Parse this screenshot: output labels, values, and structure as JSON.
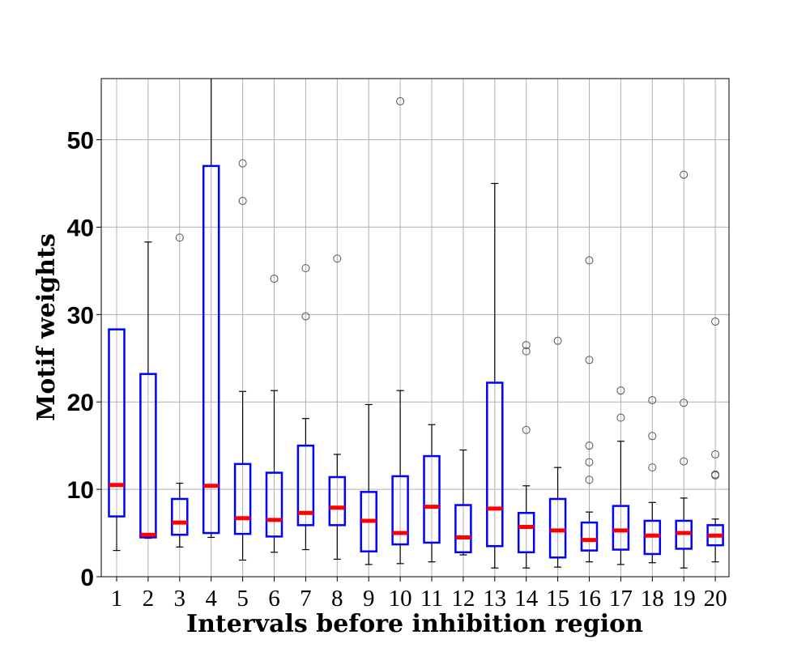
{
  "chart_data": {
    "type": "box",
    "title": "",
    "xlabel": "Intervals before inhibition region",
    "ylabel": "Motif weights",
    "ylim": [
      0,
      57
    ],
    "yticks": [
      0,
      10,
      20,
      30,
      40,
      50
    ],
    "categories": [
      "1",
      "2",
      "3",
      "4",
      "5",
      "6",
      "7",
      "8",
      "9",
      "10",
      "11",
      "12",
      "13",
      "14",
      "15",
      "16",
      "17",
      "18",
      "19",
      "20"
    ],
    "grid": true,
    "colors": {
      "box": "#0000ff",
      "median": "#ff0000",
      "whisker": "#000000",
      "outlier": "#555555",
      "grid": "#b0b0b0"
    },
    "boxes": [
      {
        "category": "1",
        "whisker_low": 3.0,
        "q1": 6.9,
        "median": 10.5,
        "q3": 28.3,
        "whisker_high": 28.3,
        "outliers": []
      },
      {
        "category": "2",
        "whisker_low": 4.4,
        "q1": 4.5,
        "median": 4.8,
        "q3": 23.2,
        "whisker_high": 38.3,
        "outliers": []
      },
      {
        "category": "3",
        "whisker_low": 3.4,
        "q1": 4.8,
        "median": 6.2,
        "q3": 8.9,
        "whisker_high": 10.7,
        "outliers": [
          38.8
        ]
      },
      {
        "category": "4",
        "whisker_low": 4.5,
        "q1": 5.0,
        "median": 10.4,
        "q3": 47.0,
        "whisker_high": 57.5,
        "outliers": []
      },
      {
        "category": "5",
        "whisker_low": 1.9,
        "q1": 4.9,
        "median": 6.7,
        "q3": 12.9,
        "whisker_high": 21.2,
        "outliers": [
          43.0,
          47.3
        ]
      },
      {
        "category": "6",
        "whisker_low": 2.8,
        "q1": 4.6,
        "median": 6.5,
        "q3": 11.9,
        "whisker_high": 21.3,
        "outliers": [
          34.1
        ]
      },
      {
        "category": "7",
        "whisker_low": 3.1,
        "q1": 5.9,
        "median": 7.3,
        "q3": 15.0,
        "whisker_high": 18.1,
        "outliers": [
          29.8,
          35.3
        ]
      },
      {
        "category": "8",
        "whisker_low": 2.0,
        "q1": 5.9,
        "median": 7.9,
        "q3": 11.4,
        "whisker_high": 14.0,
        "outliers": [
          36.4
        ]
      },
      {
        "category": "9",
        "whisker_low": 1.4,
        "q1": 2.9,
        "median": 6.4,
        "q3": 9.7,
        "whisker_high": 19.7,
        "outliers": []
      },
      {
        "category": "10",
        "whisker_low": 1.5,
        "q1": 3.7,
        "median": 5.0,
        "q3": 11.5,
        "whisker_high": 21.3,
        "outliers": [
          54.4
        ]
      },
      {
        "category": "11",
        "whisker_low": 1.7,
        "q1": 3.9,
        "median": 8.0,
        "q3": 13.8,
        "whisker_high": 17.4,
        "outliers": []
      },
      {
        "category": "12",
        "whisker_low": 2.5,
        "q1": 2.8,
        "median": 4.5,
        "q3": 8.2,
        "whisker_high": 14.5,
        "outliers": []
      },
      {
        "category": "13",
        "whisker_low": 1.0,
        "q1": 3.5,
        "median": 7.8,
        "q3": 22.2,
        "whisker_high": 45.0,
        "outliers": []
      },
      {
        "category": "14",
        "whisker_low": 1.0,
        "q1": 2.8,
        "median": 5.7,
        "q3": 7.3,
        "whisker_high": 10.4,
        "outliers": [
          16.8,
          25.8,
          26.5
        ]
      },
      {
        "category": "15",
        "whisker_low": 1.1,
        "q1": 2.2,
        "median": 5.3,
        "q3": 8.9,
        "whisker_high": 12.5,
        "outliers": [
          27.0
        ]
      },
      {
        "category": "16",
        "whisker_low": 1.7,
        "q1": 3.0,
        "median": 4.2,
        "q3": 6.2,
        "whisker_high": 7.4,
        "outliers": [
          11.1,
          13.1,
          15.0,
          24.8,
          36.2
        ]
      },
      {
        "category": "17",
        "whisker_low": 1.4,
        "q1": 3.1,
        "median": 5.3,
        "q3": 8.1,
        "whisker_high": 15.5,
        "outliers": [
          18.2,
          21.3
        ]
      },
      {
        "category": "18",
        "whisker_low": 1.6,
        "q1": 2.6,
        "median": 4.7,
        "q3": 6.4,
        "whisker_high": 8.5,
        "outliers": [
          12.5,
          16.1,
          20.2
        ]
      },
      {
        "category": "19",
        "whisker_low": 1.0,
        "q1": 3.2,
        "median": 5.0,
        "q3": 6.4,
        "whisker_high": 9.0,
        "outliers": [
          13.2,
          19.9,
          46.0
        ]
      },
      {
        "category": "20",
        "whisker_low": 1.7,
        "q1": 3.6,
        "median": 4.7,
        "q3": 5.9,
        "whisker_high": 6.6,
        "outliers": [
          11.6,
          11.7,
          14.0,
          29.2
        ]
      }
    ]
  }
}
